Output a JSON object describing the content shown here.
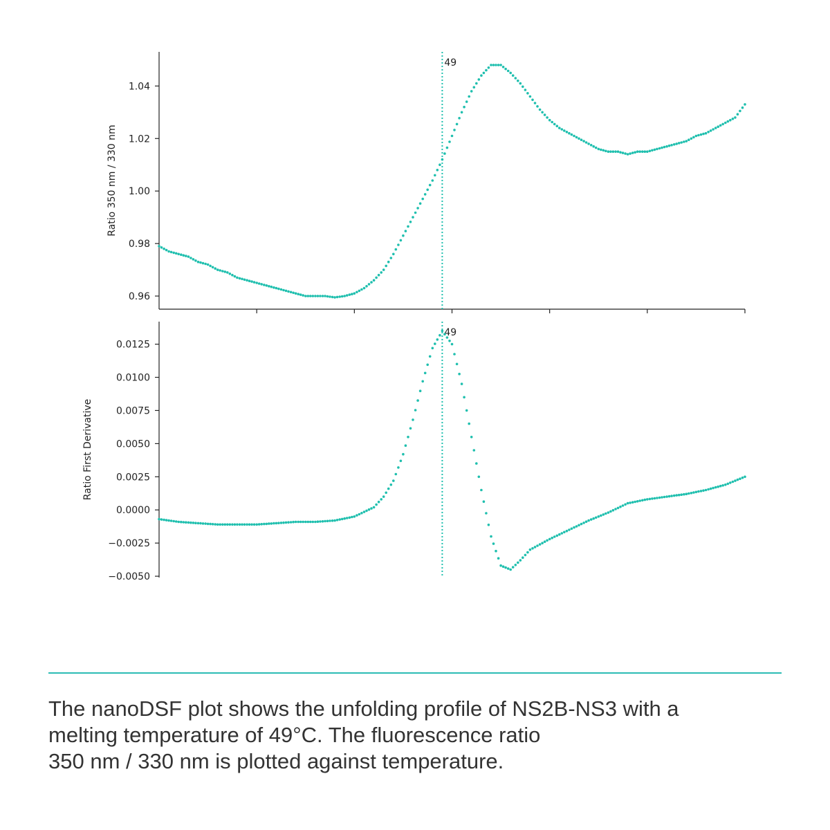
{
  "colors": {
    "accent": "#1fbfae",
    "divider": "#2bbcb4",
    "axis": "#222222",
    "text": "#333333"
  },
  "chart_data": [
    {
      "type": "scatter",
      "title": "",
      "xlabel": "",
      "ylabel": "Ratio 350 nm / 330 nm",
      "xlim": [
        20,
        80
      ],
      "ylim": [
        0.955,
        1.053
      ],
      "yticks": [
        {
          "value": 0.96,
          "label": "0.96"
        },
        {
          "value": 0.98,
          "label": "0.98"
        },
        {
          "value": 1.0,
          "label": "1.00"
        },
        {
          "value": 1.02,
          "label": "1.02"
        },
        {
          "value": 1.04,
          "label": "1.04"
        }
      ],
      "xticks": [
        30,
        40,
        50,
        60,
        70,
        80
      ],
      "vline": {
        "x": 49,
        "label": "49"
      },
      "series": [
        {
          "points": [
            [
              20,
              0.979
            ],
            [
              21,
              0.977
            ],
            [
              22,
              0.976
            ],
            [
              23,
              0.975
            ],
            [
              24,
              0.973
            ],
            [
              25,
              0.972
            ],
            [
              26,
              0.97
            ],
            [
              27,
              0.969
            ],
            [
              28,
              0.967
            ],
            [
              29,
              0.966
            ],
            [
              30,
              0.965
            ],
            [
              31,
              0.964
            ],
            [
              32,
              0.963
            ],
            [
              33,
              0.962
            ],
            [
              34,
              0.961
            ],
            [
              35,
              0.96
            ],
            [
              36,
              0.96
            ],
            [
              37,
              0.96
            ],
            [
              38,
              0.9595
            ],
            [
              39,
              0.96
            ],
            [
              40,
              0.961
            ],
            [
              41,
              0.963
            ],
            [
              42,
              0.966
            ],
            [
              43,
              0.97
            ],
            [
              44,
              0.976
            ],
            [
              45,
              0.983
            ],
            [
              46,
              0.99
            ],
            [
              47,
              0.997
            ],
            [
              48,
              1.004
            ],
            [
              49,
              1.012
            ],
            [
              50,
              1.021
            ],
            [
              51,
              1.03
            ],
            [
              52,
              1.038
            ],
            [
              53,
              1.044
            ],
            [
              54,
              1.048
            ],
            [
              55,
              1.048
            ],
            [
              56,
              1.045
            ],
            [
              57,
              1.041
            ],
            [
              58,
              1.036
            ],
            [
              59,
              1.031
            ],
            [
              60,
              1.027
            ],
            [
              61,
              1.024
            ],
            [
              62,
              1.022
            ],
            [
              63,
              1.02
            ],
            [
              64,
              1.018
            ],
            [
              65,
              1.016
            ],
            [
              66,
              1.015
            ],
            [
              67,
              1.015
            ],
            [
              68,
              1.014
            ],
            [
              69,
              1.015
            ],
            [
              70,
              1.015
            ],
            [
              71,
              1.016
            ],
            [
              72,
              1.017
            ],
            [
              73,
              1.018
            ],
            [
              74,
              1.019
            ],
            [
              75,
              1.021
            ],
            [
              76,
              1.022
            ],
            [
              77,
              1.024
            ],
            [
              78,
              1.026
            ],
            [
              79,
              1.028
            ],
            [
              80,
              1.033
            ]
          ]
        }
      ]
    },
    {
      "type": "scatter",
      "title": "",
      "xlabel": "",
      "ylabel": "Ratio First Derivative",
      "xlim": [
        20,
        80
      ],
      "ylim": [
        -0.0051,
        0.0142
      ],
      "yticks": [
        {
          "value": 0.0125,
          "label": "0.0125"
        },
        {
          "value": 0.01,
          "label": "0.0100"
        },
        {
          "value": 0.0075,
          "label": "0.0075"
        },
        {
          "value": 0.005,
          "label": "0.0050"
        },
        {
          "value": 0.0025,
          "label": "0.0025"
        },
        {
          "value": 0.0,
          "label": "0.0000"
        },
        {
          "value": -0.0025,
          "label": "−0.0025"
        },
        {
          "value": -0.005,
          "label": "−0.0050"
        }
      ],
      "vline": {
        "x": 49,
        "label": "49"
      },
      "series": [
        {
          "points": [
            [
              20,
              -0.0007
            ],
            [
              22,
              -0.0009
            ],
            [
              24,
              -0.001
            ],
            [
              26,
              -0.0011
            ],
            [
              28,
              -0.0011
            ],
            [
              30,
              -0.0011
            ],
            [
              32,
              -0.001
            ],
            [
              34,
              -0.0009
            ],
            [
              36,
              -0.0009
            ],
            [
              38,
              -0.0008
            ],
            [
              40,
              -0.0005
            ],
            [
              42,
              0.0002
            ],
            [
              43,
              0.001
            ],
            [
              44,
              0.0022
            ],
            [
              45,
              0.0042
            ],
            [
              46,
              0.0068
            ],
            [
              47,
              0.0097
            ],
            [
              48,
              0.0122
            ],
            [
              49,
              0.0135
            ],
            [
              50,
              0.0125
            ],
            [
              51,
              0.0095
            ],
            [
              52,
              0.0055
            ],
            [
              53,
              0.0015
            ],
            [
              54,
              -0.002
            ],
            [
              55,
              -0.0042
            ],
            [
              56,
              -0.0045
            ],
            [
              57,
              -0.0038
            ],
            [
              58,
              -0.003
            ],
            [
              60,
              -0.0022
            ],
            [
              62,
              -0.0015
            ],
            [
              64,
              -0.0008
            ],
            [
              66,
              -0.0002
            ],
            [
              68,
              0.0005
            ],
            [
              70,
              0.0008
            ],
            [
              72,
              0.001
            ],
            [
              74,
              0.0012
            ],
            [
              76,
              0.0015
            ],
            [
              78,
              0.0019
            ],
            [
              80,
              0.0025
            ]
          ]
        }
      ]
    }
  ],
  "caption": {
    "line1": "The nanoDSF plot shows the unfolding profile of NS2B-NS3 with a",
    "line2": "melting temperature of 49°C. The fluorescence ratio",
    "line3": "350 nm / 330 nm is plotted against temperature."
  }
}
